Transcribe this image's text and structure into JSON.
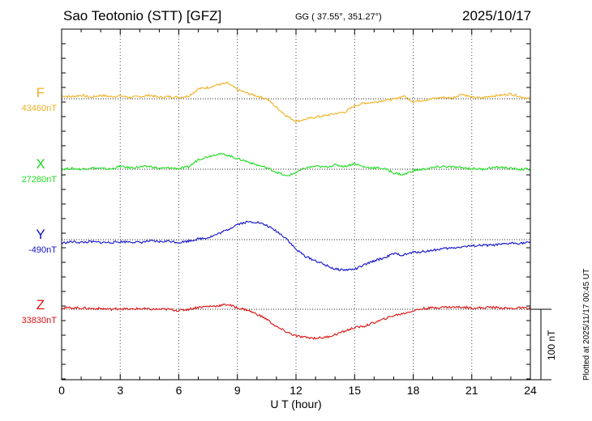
{
  "header": {
    "station": "Sao Teotonio (STT)  [GFZ]",
    "coords": "GG ( 37.55°, 351.27°)",
    "date": "2025/10/17"
  },
  "chart_data": {
    "type": "line",
    "xlabel": "U T (hour)",
    "xlim": [
      0,
      24
    ],
    "xticks": [
      "0",
      "3",
      "6",
      "9",
      "12",
      "15",
      "18",
      "21",
      "24"
    ],
    "scale_bar": "100 nT",
    "note": "Plotted at 2025/11/17 00:45 UT",
    "grid": true,
    "series": [
      {
        "name": "F",
        "baseline_label": "43460nT",
        "color": "#f0b020",
        "baseline": 43460,
        "x": [
          0,
          0.5,
          1,
          1.5,
          2,
          2.5,
          3,
          3.5,
          4,
          4.5,
          5,
          5.5,
          6,
          6.5,
          7,
          7.5,
          8,
          8.5,
          9,
          9.5,
          10,
          10.5,
          11,
          11.5,
          12,
          12.5,
          13,
          13.5,
          14,
          14.5,
          15,
          15.5,
          16,
          16.5,
          17,
          17.5,
          18,
          18.5,
          19,
          19.5,
          20,
          20.5,
          21,
          21.5,
          22,
          22.5,
          23,
          23.5,
          24
        ],
        "values": [
          4,
          3,
          5,
          2,
          5,
          3,
          4,
          2,
          3,
          5,
          2,
          3,
          2,
          4,
          14,
          16,
          20,
          22,
          13,
          8,
          4,
          0,
          -12,
          -24,
          -32,
          -29,
          -26,
          -24,
          -21,
          -19,
          -10,
          -6,
          -5,
          -2,
          -1,
          4,
          -4,
          -2,
          0,
          2,
          1,
          7,
          2,
          1,
          4,
          5,
          7,
          3,
          0
        ]
      },
      {
        "name": "X",
        "baseline_label": "27280nT",
        "color": "#22dd22",
        "baseline": 27280,
        "x": [
          0,
          0.5,
          1,
          1.5,
          2,
          2.5,
          3,
          3.5,
          4,
          4.5,
          5,
          5.5,
          6,
          6.5,
          7,
          7.5,
          8,
          8.5,
          9,
          9.5,
          10,
          10.5,
          11,
          11.5,
          12,
          12.5,
          13,
          13.5,
          14,
          14.5,
          15,
          15.5,
          16,
          16.5,
          17,
          17.5,
          18,
          18.5,
          19,
          19.5,
          20,
          20.5,
          21,
          21.5,
          22,
          22.5,
          23,
          23.5,
          24
        ],
        "values": [
          0,
          1,
          0,
          2,
          1,
          0,
          4,
          2,
          3,
          4,
          1,
          2,
          1,
          3,
          14,
          18,
          22,
          20,
          15,
          11,
          6,
          2,
          -4,
          -10,
          -5,
          2,
          4,
          3,
          6,
          4,
          8,
          3,
          2,
          1,
          -5,
          -8,
          -2,
          0,
          2,
          4,
          3,
          2,
          1,
          0,
          2,
          3,
          1,
          0,
          0
        ]
      },
      {
        "name": "Y",
        "baseline_label": "-490nT",
        "color": "#1111cc",
        "baseline": -490,
        "x": [
          0,
          0.5,
          1,
          1.5,
          2,
          2.5,
          3,
          3.5,
          4,
          4.5,
          5,
          5.5,
          6,
          6.5,
          7,
          7.5,
          8,
          8.5,
          9,
          9.5,
          10,
          10.5,
          11,
          11.5,
          12,
          12.5,
          13,
          13.5,
          14,
          14.5,
          15,
          15.5,
          16,
          16.5,
          17,
          17.5,
          18,
          18.5,
          19,
          19.5,
          20,
          20.5,
          21,
          21.5,
          22,
          22.5,
          23,
          23.5,
          24
        ],
        "values": [
          -5,
          -3,
          -4,
          -3,
          -4,
          -4,
          -3,
          -3,
          -4,
          -2,
          -3,
          -2,
          -4,
          -2,
          1,
          3,
          8,
          14,
          22,
          25,
          25,
          20,
          12,
          2,
          -14,
          -24,
          -30,
          -36,
          -42,
          -43,
          -42,
          -36,
          -30,
          -26,
          -20,
          -22,
          -18,
          -17,
          -15,
          -13,
          -12,
          -10,
          -9,
          -8,
          -8,
          -7,
          -5,
          -5,
          -4
        ]
      },
      {
        "name": "Z",
        "baseline_label": "33830nT",
        "color": "#dd1111",
        "baseline": 33830,
        "x": [
          0,
          0.5,
          1,
          1.5,
          2,
          2.5,
          3,
          3.5,
          4,
          4.5,
          5,
          5.5,
          6,
          6.5,
          7,
          7.5,
          8,
          8.5,
          9,
          9.5,
          10,
          10.5,
          11,
          11.5,
          12,
          12.5,
          13,
          13.5,
          14,
          14.5,
          15,
          15.5,
          16,
          16.5,
          17,
          17.5,
          18,
          18.5,
          19,
          19.5,
          20,
          20.5,
          21,
          21.5,
          22,
          22.5,
          23,
          23.5,
          24
        ],
        "values": [
          2,
          2,
          2,
          1,
          1,
          0,
          1,
          0,
          1,
          0,
          0,
          0,
          -2,
          0,
          3,
          4,
          5,
          7,
          2,
          -1,
          -7,
          -14,
          -25,
          -32,
          -38,
          -40,
          -41,
          -40,
          -36,
          -31,
          -26,
          -24,
          -19,
          -14,
          -9,
          -6,
          -2,
          1,
          2,
          3,
          3,
          3,
          2,
          2,
          3,
          2,
          1,
          2,
          1
        ]
      }
    ]
  }
}
